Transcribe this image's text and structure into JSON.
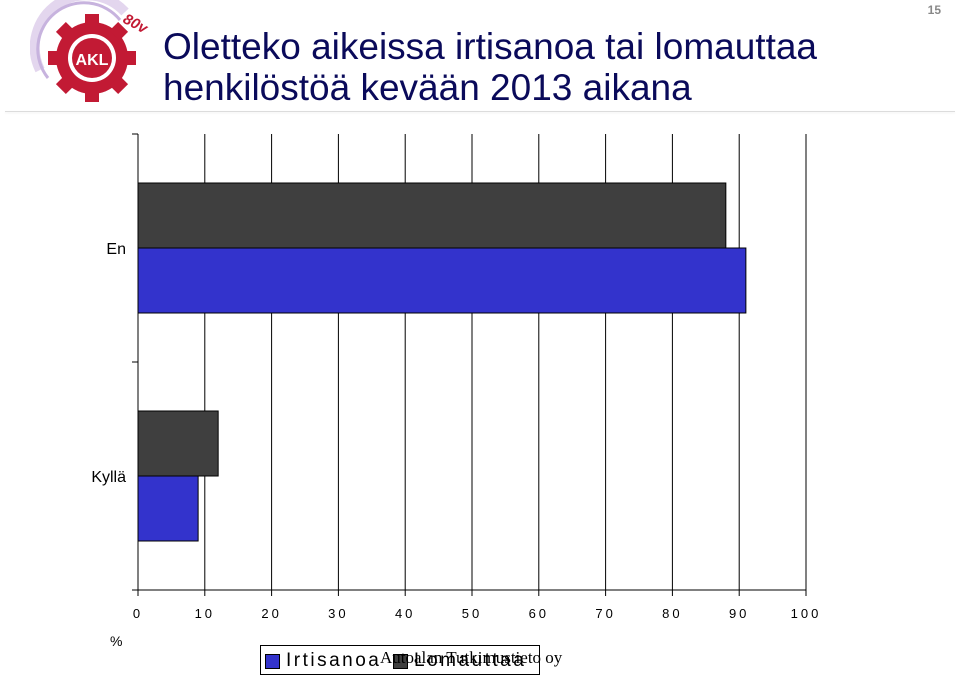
{
  "header": {
    "title": "Oletteko aikeissa irtisanoa tai lomauttaa henkilöstöä kevään 2013 aikana",
    "page_number": "15",
    "logo_text": "AKL",
    "logo_badge": "80v"
  },
  "footer": {
    "source": "Autoalan Tutkimustieto oy"
  },
  "chart_data": {
    "type": "bar",
    "orientation": "horizontal",
    "categories": [
      "En",
      "Kyllä"
    ],
    "series": [
      {
        "name": "Irtisanoa",
        "color": "#3333cc",
        "values": [
          91,
          9
        ]
      },
      {
        "name": "Lomauttaa",
        "color": "#3f3f3f",
        "values": [
          88,
          12
        ]
      }
    ],
    "xlim": [
      0,
      100
    ],
    "x_ticks": [
      0,
      10,
      20,
      30,
      40,
      50,
      60,
      70,
      80,
      90,
      100
    ],
    "xlabel": "%",
    "grid": "vertical",
    "legend_position": "bottom"
  }
}
